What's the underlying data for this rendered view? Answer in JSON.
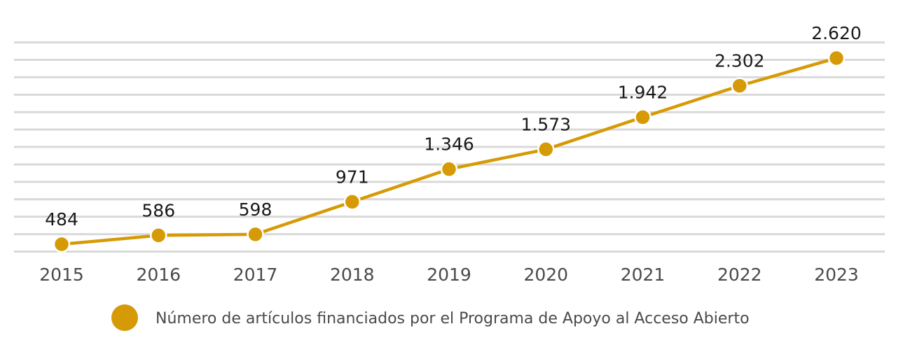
{
  "chart_data": {
    "type": "line",
    "categories": [
      "2015",
      "2016",
      "2017",
      "2018",
      "2019",
      "2020",
      "2021",
      "2022",
      "2023"
    ],
    "series": [
      {
        "name": "Número de artículos financiados por el Programa de Apoyo al Acceso Abierto",
        "values": [
          484,
          586,
          598,
          971,
          1346,
          1573,
          1942,
          2302,
          2620
        ],
        "labels": [
          "484",
          "586",
          "598",
          "971",
          "1.346",
          "1.573",
          "1.942",
          "2.302",
          "2.620"
        ],
        "color": "#D69A07"
      }
    ],
    "ylim": [
      400,
      2800
    ],
    "ygrid_step": 200,
    "grid": true,
    "y_tick_labels_shown": false,
    "legend": "bottom",
    "gridColor": "#d9d9d9"
  }
}
